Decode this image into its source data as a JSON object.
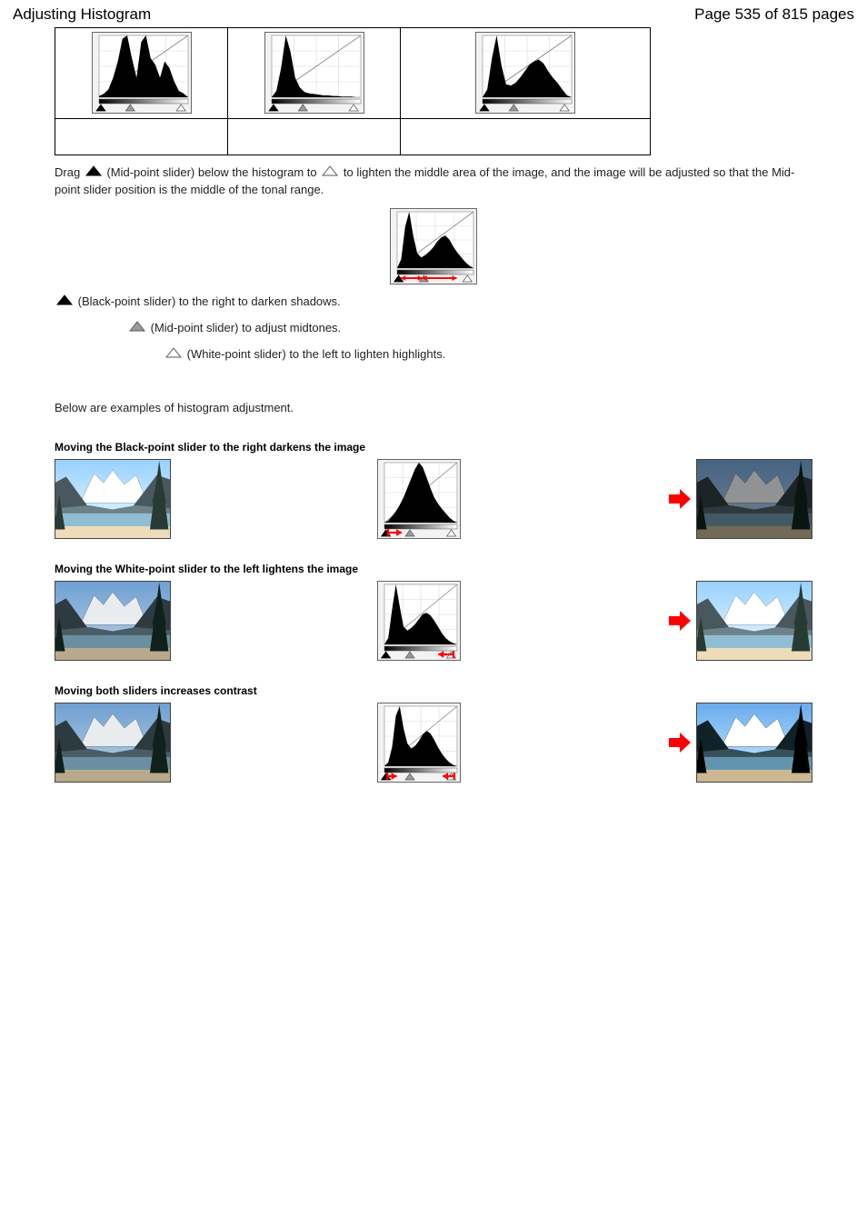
{
  "header": {
    "title": "Adjusting Histogram",
    "page_indicator": "Page 535 of 815 pages"
  },
  "colors": {
    "text": "#000000",
    "bg": "#ffffff",
    "hist_fill": "#000000",
    "hist_grid": "#d9d9d9",
    "hist_border": "#000000",
    "diagonal": "#808080",
    "slider_black": "#000000",
    "slider_gray": "#9a9a9a",
    "slider_white": "#ffffff",
    "arrow_red": "#ff0000",
    "sky1": "#bcd3e8",
    "sky2": "#6f9fd1",
    "snow": "#e8ecef",
    "mountain_dark": "#2d3a3f",
    "mountain_mid": "#4b5c63",
    "lake": "#6a8fa3",
    "tree": "#10201a"
  },
  "top_table": {
    "cells": [
      {
        "hist_values": [
          2,
          5,
          12,
          30,
          55,
          90,
          95,
          60,
          30,
          85,
          95,
          60,
          50,
          30,
          55,
          45,
          25,
          10,
          6,
          0
        ],
        "caption": ""
      },
      {
        "hist_values": [
          0,
          10,
          45,
          95,
          70,
          30,
          15,
          8,
          6,
          5,
          4,
          3,
          3,
          2,
          2,
          1,
          1,
          1,
          0,
          0
        ],
        "caption": ""
      },
      {
        "hist_values": [
          0,
          12,
          60,
          95,
          50,
          20,
          18,
          22,
          30,
          40,
          50,
          55,
          58,
          52,
          40,
          30,
          22,
          12,
          3,
          0
        ],
        "caption": ""
      }
    ],
    "slider_positions": {
      "black": 0.02,
      "gray": 0.35,
      "white": 0.92
    }
  },
  "midtone_text": {
    "before": "Drag",
    "between": " (Mid-point slider) below the histogram to ",
    "end": " to lighten the middle area of the image, and the image will be adjusted so that the Mid-point slider position is the middle of the tonal range."
  },
  "standalone_hist": {
    "values": [
      0,
      15,
      70,
      95,
      55,
      25,
      18,
      22,
      28,
      35,
      45,
      52,
      55,
      48,
      36,
      26,
      18,
      10,
      4,
      0
    ],
    "arrow_segments": [
      [
        0.05,
        0.33
      ],
      [
        0.33,
        0.78
      ]
    ]
  },
  "slider_notes": [
    {
      "icon": "black",
      "text": " (Black-point slider) to the right to darken shadows."
    },
    {
      "icon": "gray",
      "text": " (Mid-point slider) to adjust midtones."
    },
    {
      "icon": "white",
      "text": " (White-point slider) to the left to lighten highlights."
    }
  ],
  "examples_intro": "Below are examples of histogram adjustment.",
  "examples": [
    {
      "title": "Moving the Black-point slider to the right darkens the image",
      "hist_values": [
        0,
        3,
        10,
        18,
        28,
        40,
        55,
        70,
        85,
        95,
        88,
        72,
        55,
        40,
        30,
        22,
        15,
        8,
        3,
        0
      ],
      "arrow_below": {
        "from": 0.05,
        "to": 0.24,
        "color": "#ff0000"
      },
      "before_tone": "light",
      "after_tone": "dark"
    },
    {
      "title": "Moving the White-point slider to the left lightens the image",
      "hist_values": [
        0,
        10,
        55,
        95,
        60,
        28,
        22,
        26,
        32,
        40,
        48,
        50,
        46,
        38,
        28,
        18,
        10,
        5,
        2,
        0
      ],
      "arrow_below": {
        "from": 0.95,
        "to": 0.74,
        "color": "#ff0000"
      },
      "before_tone": "normal",
      "after_tone": "light"
    },
    {
      "title": "Moving both sliders increases contrast",
      "hist_values": [
        0,
        6,
        30,
        80,
        95,
        60,
        36,
        28,
        32,
        40,
        50,
        56,
        52,
        42,
        30,
        20,
        12,
        6,
        2,
        0
      ],
      "arrow_below_pair": [
        {
          "from": 0.04,
          "to": 0.17,
          "color": "#ff0000"
        },
        {
          "from": 0.96,
          "to": 0.8,
          "color": "#ff0000"
        }
      ],
      "before_tone": "normal",
      "after_tone": "contrast"
    }
  ]
}
